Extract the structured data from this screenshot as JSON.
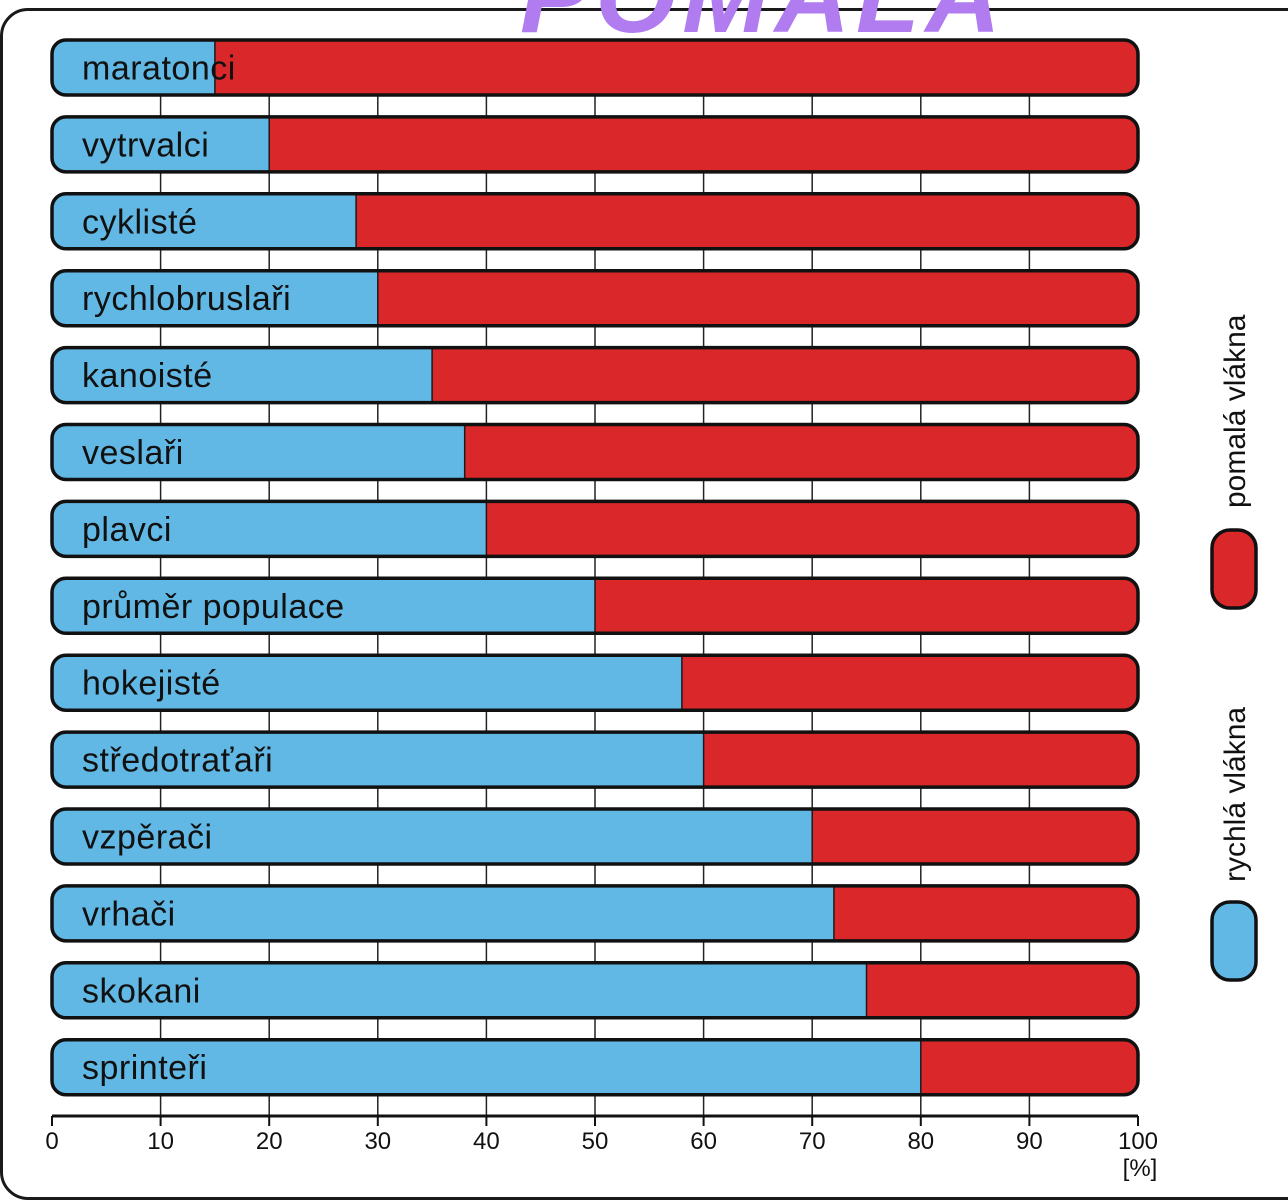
{
  "chart_data": {
    "type": "bar",
    "orientation": "horizontal",
    "stacked": true,
    "categories": [
      "maratonci",
      "vytrvalci",
      "cyklisté",
      "rychlobruslaři",
      "kanoisté",
      "veslaři",
      "plavci",
      "průměr populace",
      "hokejisté",
      "středotraťaři",
      "vzpěrači",
      "vrhači",
      "skokani",
      "sprinteři"
    ],
    "series": [
      {
        "name": "rychlá vlákna",
        "color": "#62b8e4",
        "values": [
          15,
          20,
          28,
          30,
          35,
          38,
          40,
          50,
          58,
          60,
          70,
          72,
          75,
          80
        ]
      },
      {
        "name": "pomalá vlákna",
        "color": "#d9272a",
        "values": [
          85,
          80,
          72,
          70,
          65,
          62,
          60,
          50,
          42,
          40,
          30,
          28,
          25,
          20
        ]
      }
    ],
    "xlim": [
      0,
      100
    ],
    "xticks": [
      "0",
      "10",
      "20",
      "30",
      "40",
      "50",
      "60",
      "70",
      "80",
      "90",
      "100"
    ],
    "xunit": "[%]",
    "grid": true,
    "legend_position": "right, vertical"
  },
  "title_fragment": "POMALÁ"
}
